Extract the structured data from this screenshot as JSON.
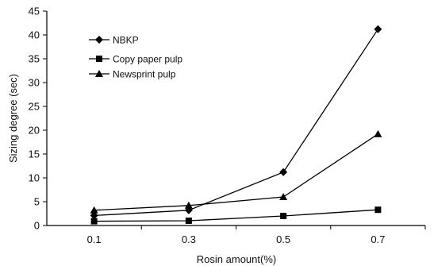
{
  "chart_data": {
    "type": "line",
    "categories": [
      "0.1",
      "0.3",
      "0.5",
      "0.7"
    ],
    "x": [
      0.1,
      0.3,
      0.5,
      0.7
    ],
    "series": [
      {
        "name": "NBKP",
        "marker": "diamond",
        "values": [
          2.1,
          3.2,
          11.2,
          41.2
        ]
      },
      {
        "name": "Copy paper pulp",
        "marker": "square",
        "values": [
          0.9,
          1.0,
          2.0,
          3.3
        ]
      },
      {
        "name": "Newsprint pulp",
        "marker": "triangle",
        "values": [
          3.2,
          4.2,
          6.0,
          19.2
        ]
      }
    ],
    "title": "",
    "xlabel": "Rosin amount(%)",
    "ylabel": "Sizing degree (sec)",
    "xlim": [
      0,
      0.8
    ],
    "ylim": [
      0,
      45
    ],
    "yticks": [
      0,
      5,
      10,
      15,
      20,
      25,
      30,
      35,
      40,
      45
    ],
    "grid": false,
    "legend_position": "upper-left",
    "colors": {
      "line": "#000000",
      "axis": "#000000"
    }
  }
}
